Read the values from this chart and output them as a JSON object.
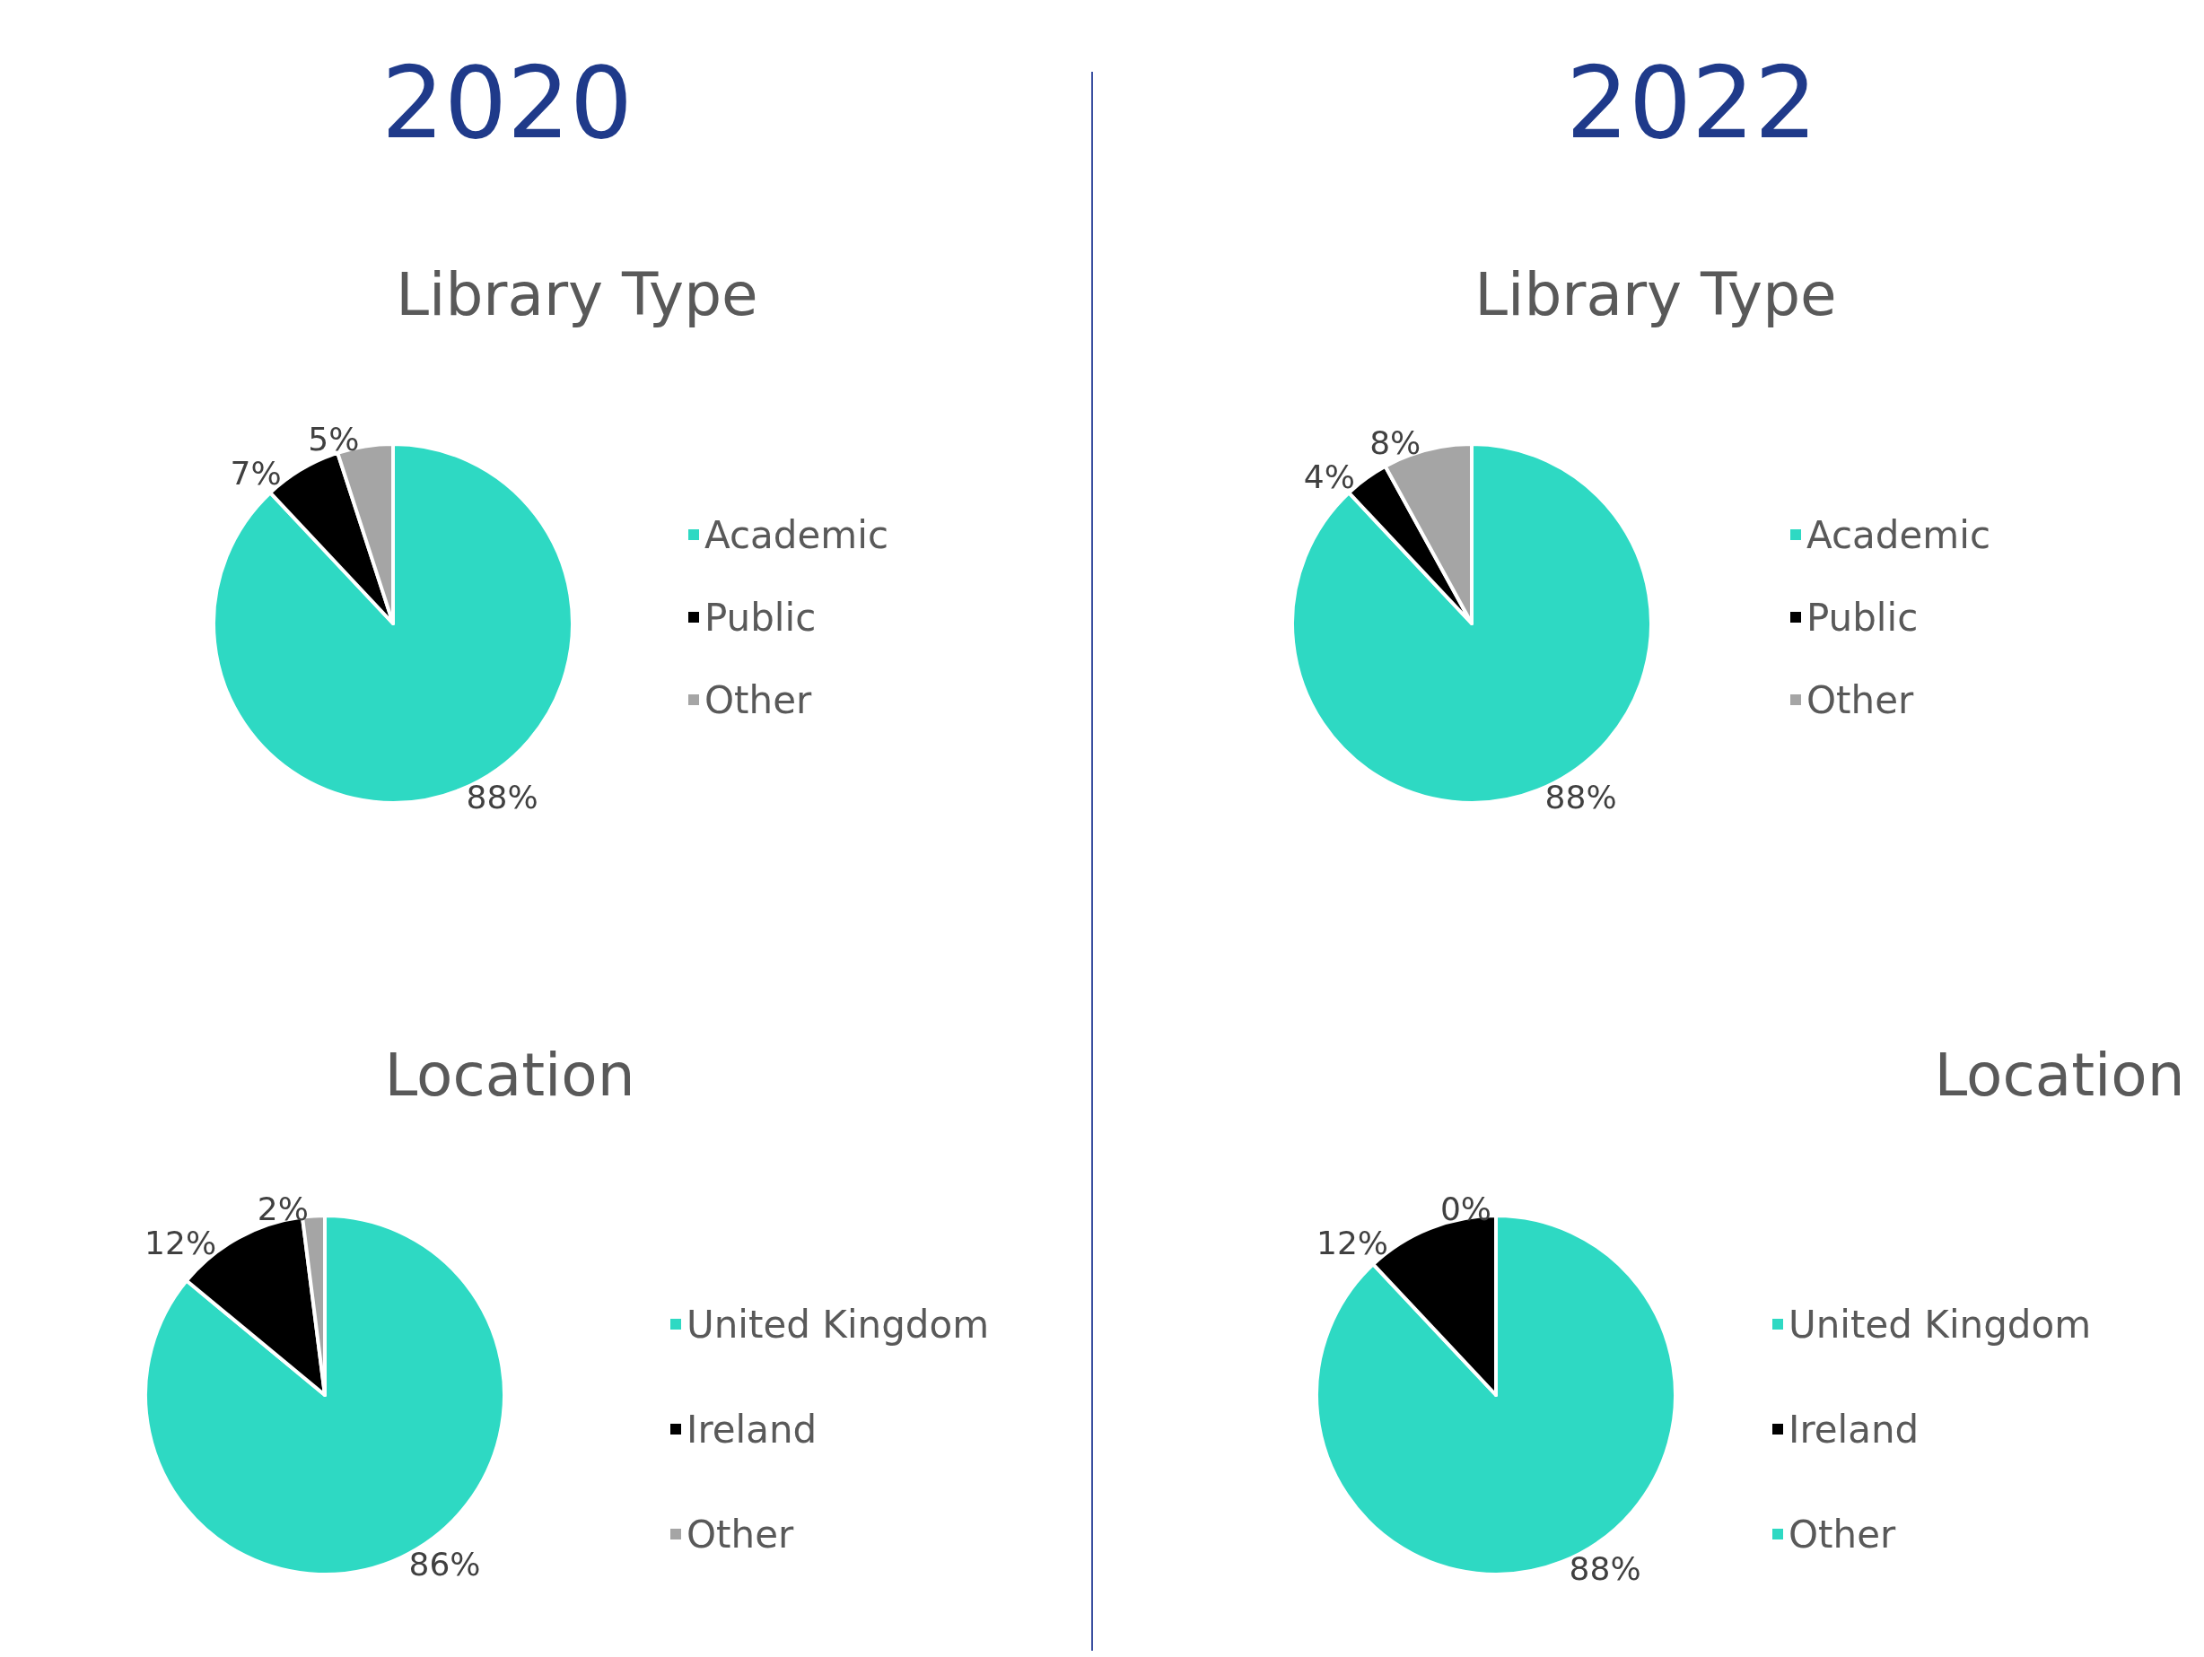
{
  "chart_data": [
    {
      "type": "pie",
      "subtitle": "2020",
      "title": "Library Type",
      "categories": [
        "Academic",
        "Public",
        "Other"
      ],
      "values": [
        88,
        7,
        5
      ],
      "value_labels": [
        "88%",
        "7%",
        "5%"
      ],
      "colors": [
        "#2ed9c3",
        "#000000",
        "#a5a5a5"
      ],
      "legend": "right"
    },
    {
      "type": "pie",
      "subtitle": "2022",
      "title": "Library Type",
      "categories": [
        "Academic",
        "Public",
        "Other"
      ],
      "values": [
        88,
        4,
        8
      ],
      "value_labels": [
        "88%",
        "4%",
        "8%"
      ],
      "colors": [
        "#2ed9c3",
        "#000000",
        "#a5a5a5"
      ],
      "legend": "right"
    },
    {
      "type": "pie",
      "title": "Location",
      "categories": [
        "United Kingdom",
        "Ireland",
        "Other"
      ],
      "values": [
        86,
        12,
        2
      ],
      "value_labels": [
        "86%",
        "12%",
        "2%"
      ],
      "colors": [
        "#2ed9c3",
        "#000000",
        "#a5a5a5"
      ],
      "legend": "right"
    },
    {
      "type": "pie",
      "title": "Location",
      "categories": [
        "United Kingdom",
        "Ireland",
        "Other"
      ],
      "values": [
        88,
        12,
        0
      ],
      "value_labels": [
        "88%",
        "12%",
        "0%"
      ],
      "colors": [
        "#2ed9c3",
        "#000000",
        "#2ed9c3"
      ],
      "legend": "right"
    }
  ]
}
